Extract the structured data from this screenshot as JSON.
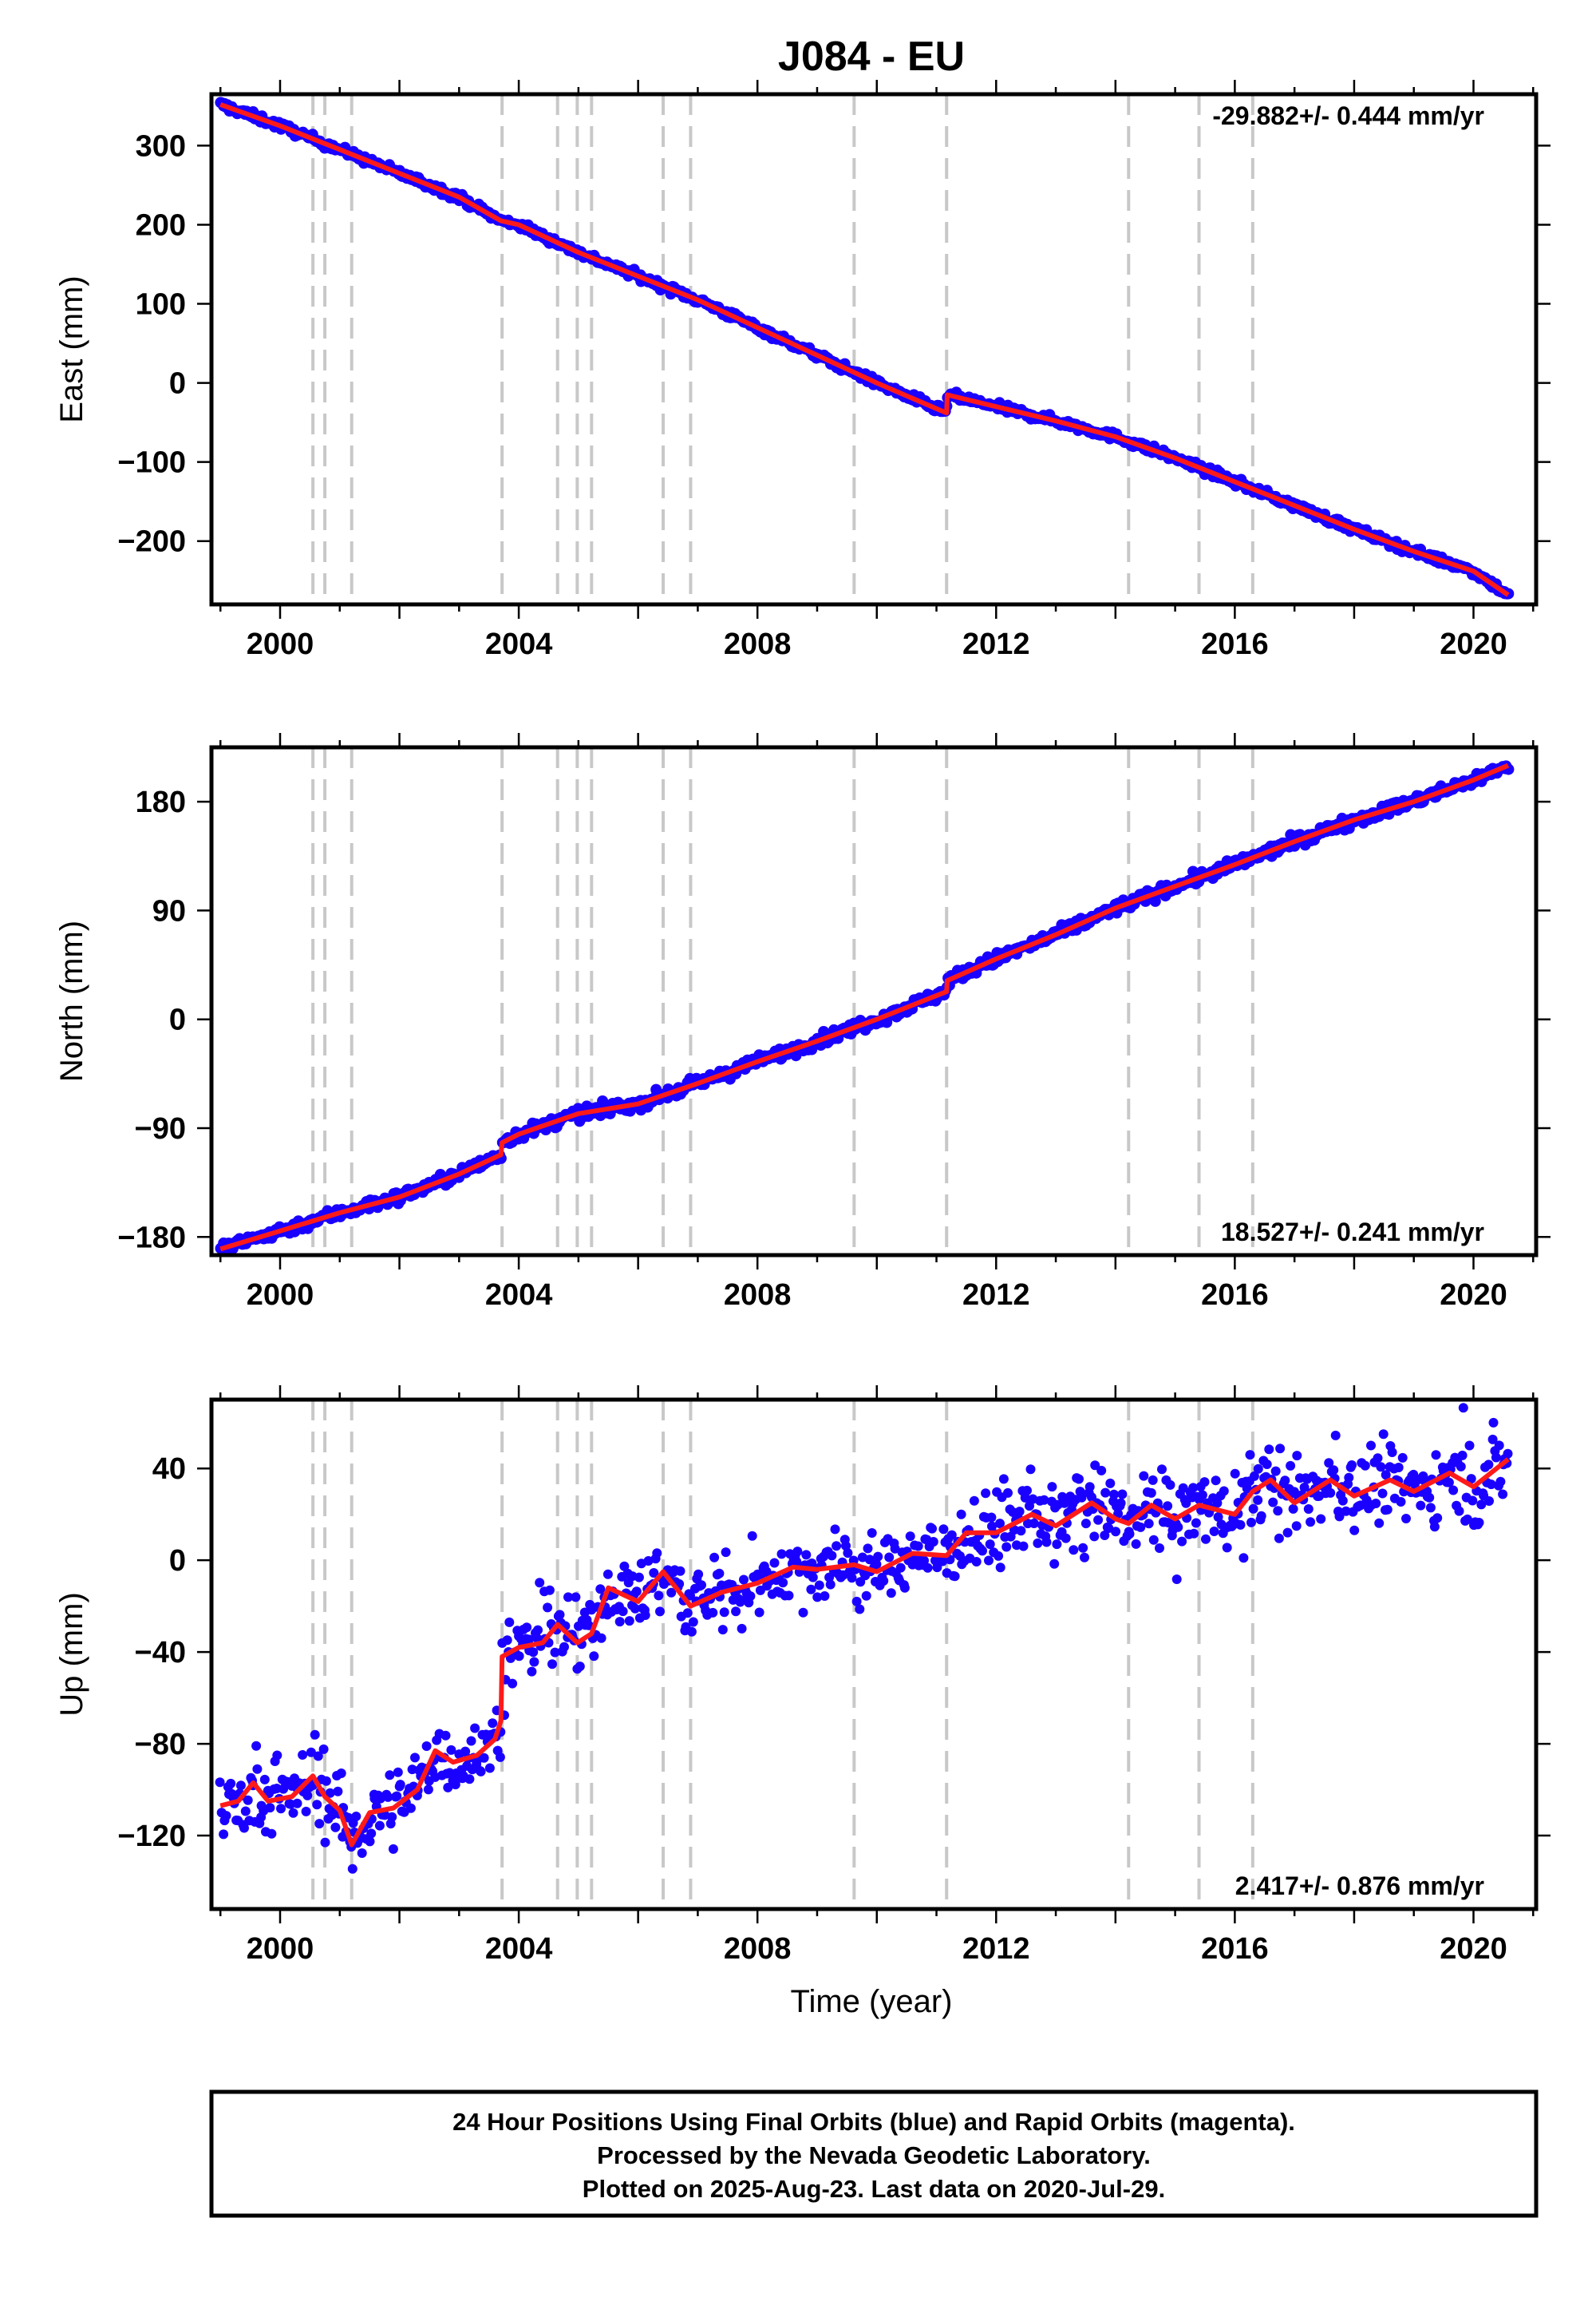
{
  "chart_data": {
    "type": "scatter",
    "title": "J084 - EU",
    "xlabel": "Time (year)",
    "xlim": [
      1998.85,
      2021.05
    ],
    "x_ticks": [
      2000,
      2004,
      2008,
      2012,
      2016,
      2020
    ],
    "x_tick_labels": [
      "2000",
      "2004",
      "2008",
      "2012",
      "2016",
      "2020"
    ],
    "grid": false,
    "event_lines": [
      2000.55,
      2000.75,
      2001.2,
      2003.72,
      2004.65,
      2004.98,
      2005.22,
      2006.42,
      2006.88,
      2009.62,
      2011.17,
      2014.22,
      2015.4,
      2016.3
    ],
    "data_span": [
      1999.0,
      2020.58
    ],
    "panels": [
      {
        "name": "east",
        "ylabel": "East (mm)",
        "ylim": [
          -280,
          365
        ],
        "y_ticks": [
          300,
          200,
          100,
          0,
          -100,
          -200
        ],
        "y_tick_labels": [
          "300",
          "200",
          "100",
          "0",
          "−100",
          "−200"
        ],
        "rate_text": "-29.882+/- 0.444 mm/yr",
        "rate_position": "top-right",
        "series": [
          {
            "name": "observations",
            "color": "#1a00ff",
            "noise_mm": 2.5
          },
          {
            "name": "model",
            "color": "#ff1a1a",
            "x": [
              1999.0,
              2000.0,
              2001.0,
              2002.0,
              2003.0,
              2003.7,
              2004.0,
              2005.0,
              2006.0,
              2007.0,
              2008.0,
              2009.0,
              2010.0,
              2011.17,
              2011.18,
              2012.0,
              2013.0,
              2014.0,
              2015.0,
              2016.0,
              2017.0,
              2018.0,
              2019.0,
              2020.0,
              2020.58
            ],
            "y": [
              352,
              325,
              295,
              265,
              235,
              205,
              200,
              165,
              135,
              105,
              70,
              35,
              0,
              -38,
              -15,
              -30,
              -48,
              -68,
              -95,
              -125,
              -155,
              -185,
              -213,
              -238,
              -268
            ]
          }
        ]
      },
      {
        "name": "north",
        "ylabel": "North (mm)",
        "ylim": [
          -195,
          225
        ],
        "y_ticks": [
          180,
          90,
          0,
          -90,
          -180
        ],
        "y_tick_labels": [
          "180",
          "90",
          "0",
          "−90",
          "−180"
        ],
        "rate_text": "18.527+/- 0.241 mm/yr",
        "rate_position": "bottom-right",
        "series": [
          {
            "name": "observations",
            "color": "#1a00ff",
            "noise_mm": 2.5
          },
          {
            "name": "model",
            "color": "#ff1a1a",
            "x": [
              1999.0,
              2000.0,
              2001.0,
              2002.0,
              2003.0,
              2003.7,
              2003.72,
              2004.0,
              2005.0,
              2006.0,
              2007.0,
              2008.0,
              2009.0,
              2010.0,
              2011.17,
              2011.18,
              2012.0,
              2013.0,
              2014.0,
              2015.0,
              2016.0,
              2017.0,
              2018.0,
              2019.0,
              2020.0,
              2020.58
            ],
            "y": [
              -190,
              -175,
              -160,
              -147,
              -128,
              -112,
              -102,
              -95,
              -78,
              -70,
              -53,
              -35,
              -18,
              0,
              23,
              32,
              50,
              70,
              92,
              110,
              128,
              147,
              165,
              180,
              198,
              210
            ]
          }
        ]
      },
      {
        "name": "up",
        "ylabel": "Up (mm)",
        "ylim": [
          -152,
          70
        ],
        "y_ticks": [
          40,
          0,
          -40,
          -80,
          -120
        ],
        "y_tick_labels": [
          "40",
          "0",
          "−40",
          "−80",
          "−120"
        ],
        "rate_text": "2.417+/- 0.876 mm/yr",
        "rate_position": "bottom-right",
        "series": [
          {
            "name": "observations",
            "color": "#1a00ff",
            "noise_mm": 8
          },
          {
            "name": "model",
            "color": "#ff1a1a",
            "x": [
              1999.0,
              1999.3,
              1999.55,
              1999.8,
              2000.2,
              2000.55,
              2000.75,
              2001.0,
              2001.2,
              2001.5,
              2001.9,
              2002.3,
              2002.6,
              2002.9,
              2003.3,
              2003.6,
              2003.7,
              2003.72,
              2004.0,
              2004.4,
              2004.65,
              2004.98,
              2005.22,
              2005.5,
              2006.0,
              2006.42,
              2006.88,
              2007.4,
              2008.0,
              2008.6,
              2009.0,
              2009.62,
              2010.0,
              2010.6,
              2011.17,
              2011.5,
              2012.0,
              2012.6,
              2013.0,
              2013.6,
              2014.0,
              2014.22,
              2014.6,
              2015.0,
              2015.4,
              2016.0,
              2016.3,
              2016.6,
              2017.0,
              2017.6,
              2018.0,
              2018.6,
              2019.0,
              2019.6,
              2020.0,
              2020.58
            ],
            "y": [
              -107,
              -105,
              -97,
              -105,
              -103,
              -94,
              -103,
              -109,
              -124,
              -110,
              -108,
              -100,
              -83,
              -88,
              -85,
              -78,
              -70,
              -42,
              -38,
              -36,
              -28,
              -36,
              -32,
              -12,
              -18,
              -5,
              -20,
              -14,
              -10,
              -3,
              -4,
              -2,
              -5,
              3,
              2,
              12,
              12,
              20,
              15,
              25,
              18,
              16,
              24,
              18,
              24,
              20,
              30,
              35,
              25,
              35,
              28,
              35,
              30,
              38,
              32,
              44
            ]
          }
        ]
      }
    ]
  },
  "footer": {
    "line1": "24 Hour Positions Using Final Orbits (blue) and Rapid Orbits (magenta).",
    "line2": "Processed by the Nevada Geodetic Laboratory.",
    "line3": "Plotted on 2025-Aug-23. Last data on 2020-Jul-29."
  }
}
